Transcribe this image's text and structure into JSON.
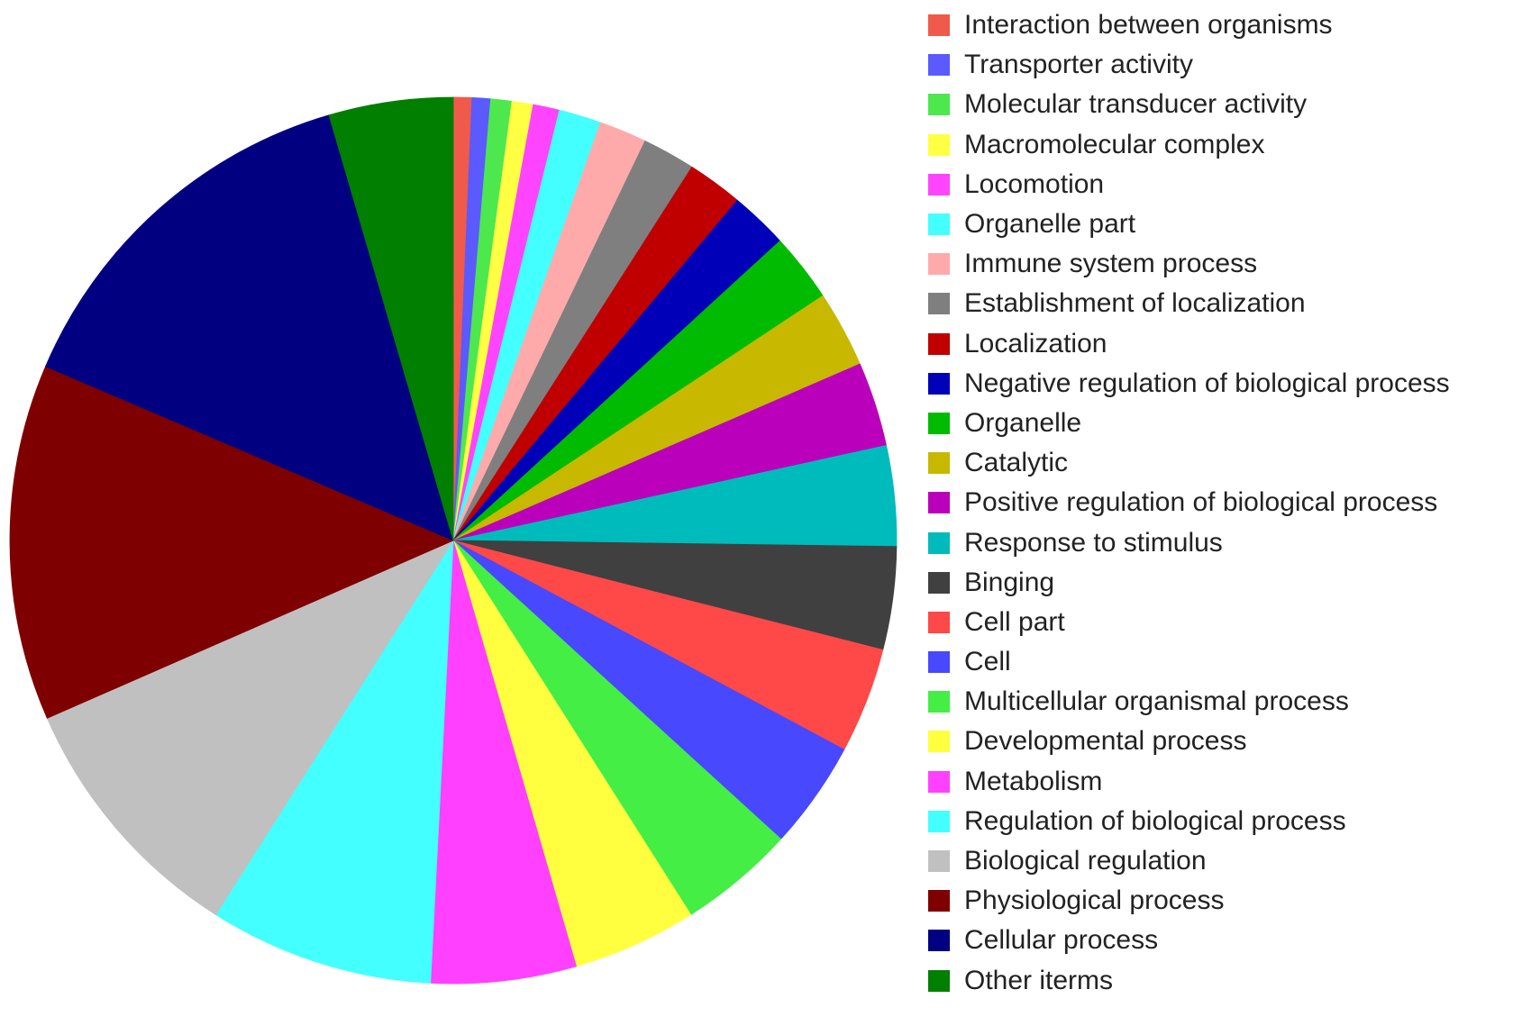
{
  "chart_data": {
    "type": "pie",
    "title": "",
    "start_angle_deg": 0,
    "direction": "clockwise",
    "legend_position": "right",
    "slices": [
      {
        "label": "Interaction between organisms",
        "value": 0.7,
        "color": "#f05a4a"
      },
      {
        "label": "Transporter activity",
        "value": 0.7,
        "color": "#5a5aff"
      },
      {
        "label": "Molecular transducer activity",
        "value": 0.8,
        "color": "#4de84d"
      },
      {
        "label": "Macromolecular complex",
        "value": 0.8,
        "color": "#ffff44"
      },
      {
        "label": "Locomotion",
        "value": 1.0,
        "color": "#ff44ff"
      },
      {
        "label": "Organelle part",
        "value": 1.6,
        "color": "#44ffff"
      },
      {
        "label": "Immune system process",
        "value": 1.8,
        "color": "#ffaaaa"
      },
      {
        "label": "Establishment of localization",
        "value": 2.0,
        "color": "#7f7f7f"
      },
      {
        "label": "Localization",
        "value": 2.1,
        "color": "#c00000"
      },
      {
        "label": "Negative regulation of biological process",
        "value": 2.2,
        "color": "#0000b8"
      },
      {
        "label": "Organelle",
        "value": 2.6,
        "color": "#00bb00"
      },
      {
        "label": "Catalytic",
        "value": 2.9,
        "color": "#c8b800"
      },
      {
        "label": "Positive regulation of biological process",
        "value": 3.2,
        "color": "#bb00bb"
      },
      {
        "label": "Response to stimulus",
        "value": 3.8,
        "color": "#00bbbb"
      },
      {
        "label": "Binging",
        "value": 3.9,
        "color": "#404040"
      },
      {
        "label": "Cell part",
        "value": 4.0,
        "color": "#ff4848"
      },
      {
        "label": "Cell",
        "value": 4.1,
        "color": "#4848ff"
      },
      {
        "label": "Multicellular organismal process",
        "value": 4.4,
        "color": "#44ee44"
      },
      {
        "label": "Developmental process",
        "value": 4.7,
        "color": "#ffff40"
      },
      {
        "label": "Metabolism",
        "value": 5.5,
        "color": "#ff40ff"
      },
      {
        "label": "Regulation of biological process",
        "value": 8.5,
        "color": "#44ffff"
      },
      {
        "label": "Biological regulation",
        "value": 9.8,
        "color": "#c0c0c0"
      },
      {
        "label": "Physiological process",
        "value": 13.5,
        "color": "#7f0000"
      },
      {
        "label": "Cellular process",
        "value": 14.6,
        "color": "#000080"
      },
      {
        "label": "Other iterms",
        "value": 4.7,
        "color": "#007f00"
      }
    ]
  }
}
